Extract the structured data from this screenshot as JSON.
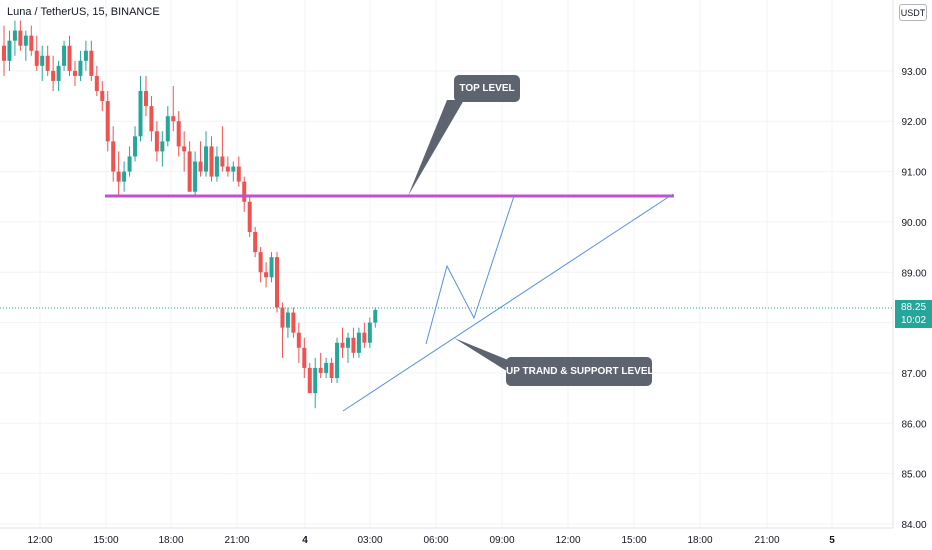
{
  "header": {
    "symbol_title": "Luna / TetherUS, 15, BINANCE",
    "currency": "USDT"
  },
  "last_price": {
    "value": "88.25",
    "countdown": "10:02",
    "color": "#26a69a"
  },
  "annotations": {
    "top_level_label": "TOP LEVEL",
    "trend_label": "UP TRAND & SUPPORT LEVEL"
  },
  "colors": {
    "up": "#26a69a",
    "down": "#ef5350",
    "level_line": "#c44fd1",
    "drawing": "#5b8fe0",
    "callout": "#5d6470"
  },
  "chart_data": {
    "type": "candlestick",
    "y_axis": {
      "range": [
        84,
        94.1
      ],
      "ticks": [
        "84.00",
        "85.00",
        "86.00",
        "87.00",
        "88.00",
        "89.00",
        "90.00",
        "91.00",
        "92.00",
        "93.00"
      ],
      "side": "right"
    },
    "x_axis": {
      "ticks": [
        "12:00",
        "15:00",
        "18:00",
        "21:00",
        "4",
        "03:00",
        "06:00",
        "09:00",
        "12:00",
        "15:00",
        "18:00",
        "21:00",
        "5"
      ]
    },
    "candles": [
      {
        "o": 93.5,
        "h": 93.9,
        "l": 92.9,
        "c": 93.2
      },
      {
        "o": 93.2,
        "h": 93.8,
        "l": 93.0,
        "c": 93.6
      },
      {
        "o": 93.6,
        "h": 94.0,
        "l": 93.3,
        "c": 93.8
      },
      {
        "o": 93.8,
        "h": 94.0,
        "l": 93.4,
        "c": 93.5
      },
      {
        "o": 93.5,
        "h": 93.8,
        "l": 93.2,
        "c": 93.7
      },
      {
        "o": 93.7,
        "h": 93.9,
        "l": 93.3,
        "c": 93.4
      },
      {
        "o": 93.4,
        "h": 93.7,
        "l": 93.0,
        "c": 93.1
      },
      {
        "o": 93.1,
        "h": 93.5,
        "l": 92.8,
        "c": 93.3
      },
      {
        "o": 93.3,
        "h": 93.5,
        "l": 92.9,
        "c": 93.0
      },
      {
        "o": 93.0,
        "h": 93.3,
        "l": 92.6,
        "c": 92.8
      },
      {
        "o": 92.8,
        "h": 93.2,
        "l": 92.6,
        "c": 93.1
      },
      {
        "o": 93.1,
        "h": 93.6,
        "l": 93.0,
        "c": 93.5
      },
      {
        "o": 93.5,
        "h": 93.7,
        "l": 92.9,
        "c": 93.0
      },
      {
        "o": 93.0,
        "h": 93.2,
        "l": 92.7,
        "c": 92.9
      },
      {
        "o": 92.9,
        "h": 93.4,
        "l": 92.8,
        "c": 93.2
      },
      {
        "o": 93.2,
        "h": 93.6,
        "l": 93.0,
        "c": 93.4
      },
      {
        "o": 93.4,
        "h": 93.6,
        "l": 92.8,
        "c": 92.9
      },
      {
        "o": 92.9,
        "h": 93.1,
        "l": 92.5,
        "c": 92.6
      },
      {
        "o": 92.6,
        "h": 92.8,
        "l": 92.2,
        "c": 92.4
      },
      {
        "o": 92.4,
        "h": 92.6,
        "l": 91.4,
        "c": 91.6
      },
      {
        "o": 91.6,
        "h": 91.9,
        "l": 90.8,
        "c": 91.0
      },
      {
        "o": 91.0,
        "h": 91.4,
        "l": 90.5,
        "c": 90.8
      },
      {
        "o": 90.8,
        "h": 91.2,
        "l": 90.6,
        "c": 91.0
      },
      {
        "o": 91.0,
        "h": 91.5,
        "l": 90.9,
        "c": 91.3
      },
      {
        "o": 91.3,
        "h": 91.9,
        "l": 91.2,
        "c": 91.7
      },
      {
        "o": 91.7,
        "h": 92.9,
        "l": 91.6,
        "c": 92.6
      },
      {
        "o": 92.6,
        "h": 92.9,
        "l": 92.1,
        "c": 92.3
      },
      {
        "o": 92.3,
        "h": 92.5,
        "l": 91.6,
        "c": 91.8
      },
      {
        "o": 91.8,
        "h": 92.0,
        "l": 91.2,
        "c": 91.4
      },
      {
        "o": 91.4,
        "h": 91.8,
        "l": 91.1,
        "c": 91.6
      },
      {
        "o": 91.6,
        "h": 92.3,
        "l": 91.5,
        "c": 92.1
      },
      {
        "o": 92.1,
        "h": 92.7,
        "l": 91.8,
        "c": 92.0
      },
      {
        "o": 92.0,
        "h": 92.2,
        "l": 91.3,
        "c": 91.5
      },
      {
        "o": 91.5,
        "h": 91.8,
        "l": 91.0,
        "c": 91.4
      },
      {
        "o": 91.4,
        "h": 91.6,
        "l": 90.6,
        "c": 90.6
      },
      {
        "o": 90.6,
        "h": 91.4,
        "l": 90.5,
        "c": 91.2
      },
      {
        "o": 91.2,
        "h": 91.6,
        "l": 90.9,
        "c": 91.0
      },
      {
        "o": 91.0,
        "h": 91.8,
        "l": 90.9,
        "c": 91.5
      },
      {
        "o": 91.5,
        "h": 91.7,
        "l": 90.8,
        "c": 90.9
      },
      {
        "o": 90.9,
        "h": 91.5,
        "l": 90.8,
        "c": 91.3
      },
      {
        "o": 91.3,
        "h": 91.9,
        "l": 91.0,
        "c": 91.1
      },
      {
        "o": 91.1,
        "h": 91.3,
        "l": 90.9,
        "c": 91.0
      },
      {
        "o": 91.0,
        "h": 91.2,
        "l": 90.8,
        "c": 91.1
      },
      {
        "o": 91.1,
        "h": 91.3,
        "l": 90.7,
        "c": 90.8
      },
      {
        "o": 90.8,
        "h": 90.9,
        "l": 90.2,
        "c": 90.4
      },
      {
        "o": 90.4,
        "h": 90.5,
        "l": 89.7,
        "c": 89.8
      },
      {
        "o": 89.8,
        "h": 89.9,
        "l": 89.3,
        "c": 89.4
      },
      {
        "o": 89.4,
        "h": 89.5,
        "l": 88.8,
        "c": 89.0
      },
      {
        "o": 89.0,
        "h": 89.2,
        "l": 88.7,
        "c": 88.9
      },
      {
        "o": 88.9,
        "h": 89.4,
        "l": 88.8,
        "c": 89.3
      },
      {
        "o": 89.3,
        "h": 89.4,
        "l": 88.2,
        "c": 88.3
      },
      {
        "o": 88.3,
        "h": 88.4,
        "l": 87.3,
        "c": 87.9
      },
      {
        "o": 87.9,
        "h": 88.3,
        "l": 87.7,
        "c": 88.2
      },
      {
        "o": 88.2,
        "h": 88.3,
        "l": 87.7,
        "c": 87.8
      },
      {
        "o": 87.8,
        "h": 88.0,
        "l": 87.2,
        "c": 87.5
      },
      {
        "o": 87.5,
        "h": 87.7,
        "l": 86.9,
        "c": 87.1
      },
      {
        "o": 87.1,
        "h": 87.2,
        "l": 86.6,
        "c": 86.6
      },
      {
        "o": 86.6,
        "h": 87.3,
        "l": 86.3,
        "c": 87.1
      },
      {
        "o": 87.1,
        "h": 87.4,
        "l": 86.9,
        "c": 87.0
      },
      {
        "o": 87.0,
        "h": 87.3,
        "l": 86.9,
        "c": 87.2
      },
      {
        "o": 87.2,
        "h": 87.3,
        "l": 86.8,
        "c": 86.9
      },
      {
        "o": 86.9,
        "h": 87.7,
        "l": 86.8,
        "c": 87.6
      },
      {
        "o": 87.6,
        "h": 87.9,
        "l": 87.3,
        "c": 87.5
      },
      {
        "o": 87.5,
        "h": 87.8,
        "l": 87.2,
        "c": 87.7
      },
      {
        "o": 87.7,
        "h": 87.9,
        "l": 87.3,
        "c": 87.4
      },
      {
        "o": 87.4,
        "h": 87.9,
        "l": 87.3,
        "c": 87.8
      },
      {
        "o": 87.8,
        "h": 88.0,
        "l": 87.5,
        "c": 87.6
      },
      {
        "o": 87.6,
        "h": 88.1,
        "l": 87.5,
        "c": 88.0
      },
      {
        "o": 88.0,
        "h": 88.3,
        "l": 87.9,
        "c": 88.25
      }
    ],
    "horizontal_line": {
      "label": "TOP LEVEL",
      "price": 90.45
    },
    "trend_line": {
      "label": "UP TRAND & SUPPORT LEVEL",
      "from_price": 86.25,
      "to_price": 90.5
    },
    "projection_path": [
      87.55,
      89.05,
      88.05,
      90.45
    ]
  }
}
